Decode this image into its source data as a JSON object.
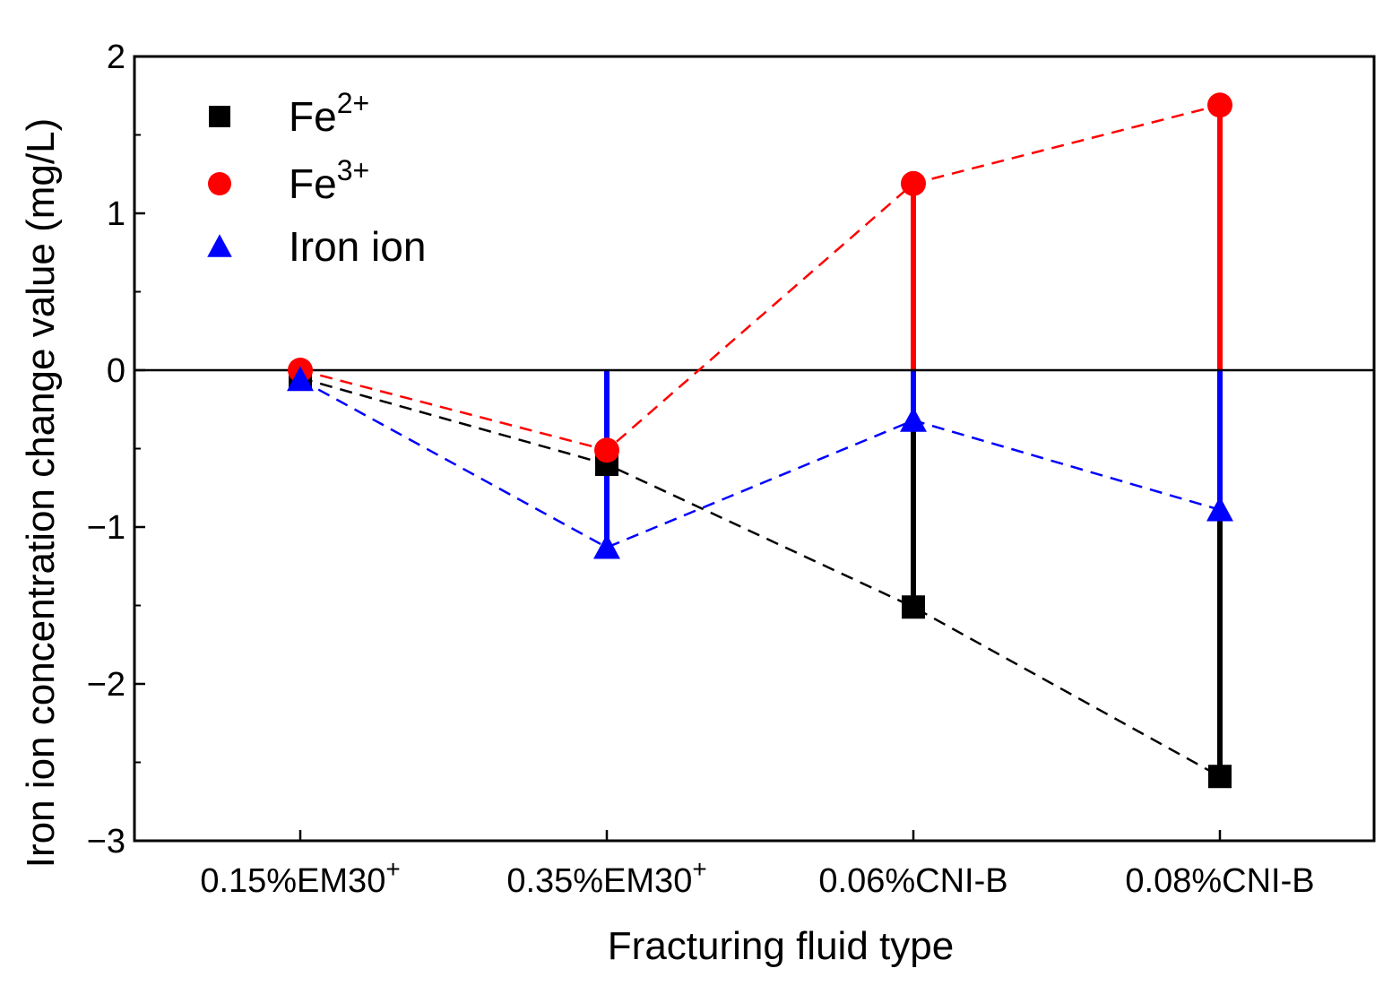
{
  "chart_data": {
    "type": "scatter",
    "title": "",
    "xlabel": "Fracturing fluid type",
    "ylabel": "Iron ion concentration change value (mg/L)",
    "categories": [
      {
        "base": "0.15%EM30",
        "sup": "+"
      },
      {
        "base": "0.35%EM30",
        "sup": "+"
      },
      {
        "base": "0.06%CNI-B",
        "sup": ""
      },
      {
        "base": "0.08%CNI-B",
        "sup": ""
      }
    ],
    "ylim": [
      -3,
      2
    ],
    "yticks": [
      -3,
      -2,
      -1,
      0,
      1,
      2
    ],
    "ytick_labels": [
      "−3",
      "−2",
      "−1",
      "0",
      "1",
      "2"
    ],
    "zero_line": true,
    "series": [
      {
        "name": "Fe",
        "sup": "2+",
        "marker": "square",
        "color": "#000000",
        "values": [
          -0.05,
          -0.6,
          -1.51,
          -2.59
        ],
        "drop_lines": [
          false,
          false,
          true,
          true
        ]
      },
      {
        "name": "Fe",
        "sup": "3+",
        "marker": "circle",
        "color": "#ff0000",
        "values": [
          0.0,
          -0.51,
          1.19,
          1.69
        ],
        "drop_lines": [
          false,
          false,
          true,
          true
        ]
      },
      {
        "name": "Iron ion",
        "sup": "",
        "marker": "triangle",
        "color": "#0000ff",
        "values": [
          -0.06,
          -1.13,
          -0.32,
          -0.89
        ],
        "drop_lines": [
          false,
          true,
          true,
          true
        ]
      }
    ],
    "legend_position": "top-left"
  }
}
